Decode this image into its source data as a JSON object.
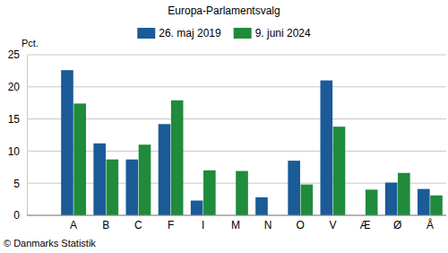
{
  "chart_data": {
    "type": "bar",
    "title": "Europa-Parlamentsvalg",
    "y_label": "Pct.",
    "source": "© Danmarks Statistik",
    "categories": [
      "A",
      "B",
      "C",
      "F",
      "I",
      "M",
      "N",
      "O",
      "V",
      "Æ",
      "Ø",
      "Å"
    ],
    "series": [
      {
        "name": "26. maj 2019",
        "color": "#1a5b98",
        "values": [
          22.6,
          11.2,
          8.7,
          14.2,
          2.3,
          null,
          2.8,
          8.5,
          21.0,
          null,
          5.1,
          4.1
        ]
      },
      {
        "name": "9. juni 2024",
        "color": "#1f8b3b",
        "values": [
          17.4,
          8.7,
          11.0,
          17.9,
          7.0,
          6.9,
          null,
          4.8,
          13.8,
          4.0,
          6.6,
          3.1
        ]
      }
    ],
    "ylim": [
      0,
      25
    ],
    "yticks": [
      0,
      5,
      10,
      15,
      20,
      25
    ],
    "grid": true,
    "legend": "top"
  }
}
